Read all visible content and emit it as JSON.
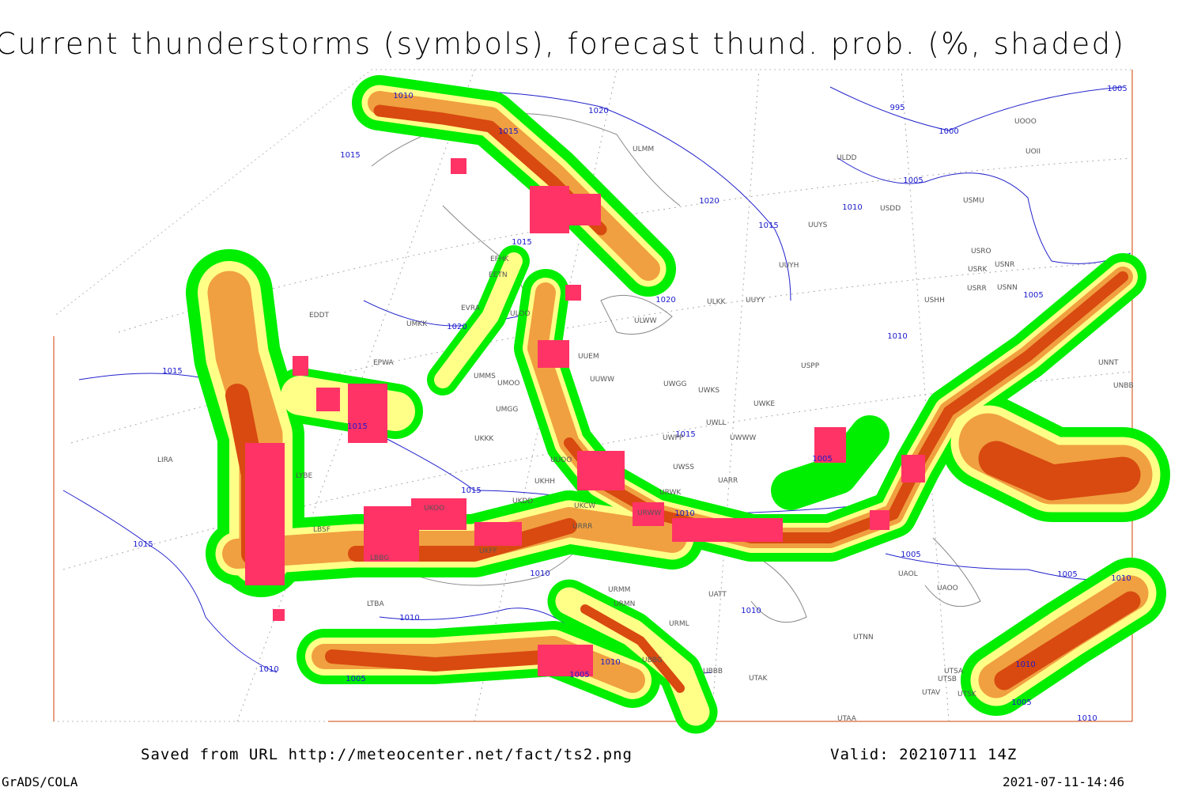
{
  "title": "Current thunderstorms (symbols), forecast thund. prob. (%, shaded)",
  "footer": {
    "saved": "Saved from URL http://meteocenter.net/fact/ts2.png",
    "valid": "Valid: 20210711 14Z",
    "software": "GrADS/COLA",
    "timestamp": "2021-07-11-14:46"
  },
  "isobar_labels": [
    "1010",
    "1015",
    "1020",
    "995",
    "1000",
    "1005",
    "1015",
    "1005",
    "1020",
    "1010",
    "1015",
    "1015",
    "1020",
    "1020",
    "1005",
    "1010",
    "1015",
    "1015",
    "1015",
    "1005",
    "1015",
    "1010",
    "1005",
    "1010",
    "1005",
    "1010",
    "1010",
    "1010",
    "1015",
    "1010",
    "1005",
    "1010",
    "1005",
    "1010",
    "1005",
    "1010"
  ],
  "station_labels": [
    "ULMM",
    "ULDD",
    "UOOO",
    "UOII",
    "USMU",
    "USDD",
    "UUYS",
    "UUYH",
    "USRO",
    "USRK",
    "USNR",
    "USRR",
    "USNN",
    "USHH",
    "ULKK",
    "UUYY",
    "ULWW",
    "EFHK",
    "EETN",
    "ULOO",
    "EVRA",
    "UMKK",
    "EDDT",
    "EPWA",
    "UMMS",
    "UMOO",
    "UUEM",
    "UUWW",
    "UWGG",
    "UWKS",
    "UWKE",
    "UWLL",
    "UWWW",
    "UWPP",
    "USPP",
    "UMGG",
    "UKKK",
    "LYBE",
    "LBSF",
    "UKOO",
    "UKFF",
    "LBBG",
    "UKHH",
    "UKDD",
    "UKCW",
    "URWW",
    "UWSS",
    "URWK",
    "UARR",
    "UUOO",
    "URRR",
    "UATT",
    "UAOO",
    "UAOL",
    "UTNN",
    "URML",
    "URMM",
    "URMN",
    "UBBB",
    "UBBG",
    "UTAK",
    "UTSA",
    "UTSB",
    "UTAV",
    "UTSK",
    "UTAA",
    "UNNT",
    "UNBB",
    "LTBA",
    "LIRA"
  ]
}
